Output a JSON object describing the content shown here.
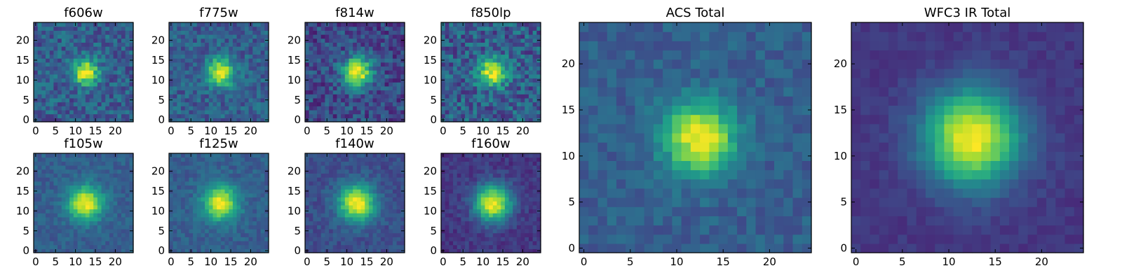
{
  "chart_data": [
    {
      "type": "heatmap",
      "title": "f606w",
      "xlim": [
        0,
        24
      ],
      "ylim": [
        0,
        24
      ],
      "xticks": [
        0,
        5,
        10,
        15,
        20
      ],
      "yticks": [
        0,
        5,
        10,
        15,
        20
      ],
      "grid": false,
      "colormap": "viridis",
      "peak": [
        12.5,
        12
      ],
      "spread": 2.2,
      "background": 0.3,
      "noise": 0.3
    },
    {
      "type": "heatmap",
      "title": "f775w",
      "xlim": [
        0,
        24
      ],
      "ylim": [
        0,
        24
      ],
      "xticks": [
        0,
        5,
        10,
        15,
        20
      ],
      "yticks": [
        0,
        5,
        10,
        15,
        20
      ],
      "grid": false,
      "colormap": "viridis",
      "peak": [
        12.5,
        12
      ],
      "spread": 2.4,
      "background": 0.3,
      "noise": 0.26
    },
    {
      "type": "heatmap",
      "title": "f814w",
      "xlim": [
        0,
        24
      ],
      "ylim": [
        0,
        24
      ],
      "xticks": [
        0,
        5,
        10,
        15,
        20
      ],
      "yticks": [
        0,
        5,
        10,
        15,
        20
      ],
      "grid": false,
      "colormap": "viridis",
      "peak": [
        12.5,
        12
      ],
      "spread": 2.6,
      "background": 0.22,
      "noise": 0.3
    },
    {
      "type": "heatmap",
      "title": "f850lp",
      "xlim": [
        0,
        24
      ],
      "ylim": [
        0,
        24
      ],
      "xticks": [
        0,
        5,
        10,
        15,
        20
      ],
      "yticks": [
        0,
        5,
        10,
        15,
        20
      ],
      "grid": false,
      "colormap": "viridis",
      "peak": [
        12.5,
        12
      ],
      "spread": 2.4,
      "background": 0.3,
      "noise": 0.36
    },
    {
      "type": "heatmap",
      "title": "f105w",
      "xlim": [
        0,
        24
      ],
      "ylim": [
        0,
        24
      ],
      "xticks": [
        0,
        5,
        10,
        15,
        20
      ],
      "yticks": [
        0,
        5,
        10,
        15,
        20
      ],
      "grid": false,
      "colormap": "viridis",
      "peak": [
        12.5,
        12
      ],
      "spread": 3.0,
      "background": 0.3,
      "noise": 0.14
    },
    {
      "type": "heatmap",
      "title": "f125w",
      "xlim": [
        0,
        24
      ],
      "ylim": [
        0,
        24
      ],
      "xticks": [
        0,
        5,
        10,
        15,
        20
      ],
      "yticks": [
        0,
        5,
        10,
        15,
        20
      ],
      "grid": false,
      "colormap": "viridis",
      "peak": [
        12.5,
        12
      ],
      "spread": 3.0,
      "background": 0.3,
      "noise": 0.15
    },
    {
      "type": "heatmap",
      "title": "f140w",
      "xlim": [
        0,
        24
      ],
      "ylim": [
        0,
        24
      ],
      "xticks": [
        0,
        5,
        10,
        15,
        20
      ],
      "yticks": [
        0,
        5,
        10,
        15,
        20
      ],
      "grid": false,
      "colormap": "viridis",
      "peak": [
        12.5,
        12
      ],
      "spread": 3.2,
      "background": 0.24,
      "noise": 0.14
    },
    {
      "type": "heatmap",
      "title": "f160w",
      "xlim": [
        0,
        24
      ],
      "ylim": [
        0,
        24
      ],
      "xticks": [
        0,
        5,
        10,
        15,
        20
      ],
      "yticks": [
        0,
        5,
        10,
        15,
        20
      ],
      "grid": false,
      "colormap": "viridis",
      "peak": [
        12.5,
        12
      ],
      "spread": 3.2,
      "background": 0.16,
      "noise": 0.14
    },
    {
      "type": "heatmap",
      "title": "ACS Total",
      "xlim": [
        0,
        24
      ],
      "ylim": [
        0,
        24
      ],
      "xticks": [
        0,
        5,
        10,
        15,
        20
      ],
      "yticks": [
        0,
        5,
        10,
        15,
        20
      ],
      "grid": false,
      "colormap": "viridis",
      "peak": [
        12.5,
        12
      ],
      "spread": 2.7,
      "background": 0.3,
      "noise": 0.16
    },
    {
      "type": "heatmap",
      "title": "WFC3 IR Total",
      "xlim": [
        0,
        24
      ],
      "ylim": [
        0,
        24
      ],
      "xticks": [
        0,
        5,
        10,
        15,
        20
      ],
      "yticks": [
        0,
        5,
        10,
        15,
        20
      ],
      "grid": false,
      "colormap": "viridis",
      "peak": [
        12.5,
        12
      ],
      "spread": 3.6,
      "background": 0.16,
      "noise": 0.08
    }
  ]
}
